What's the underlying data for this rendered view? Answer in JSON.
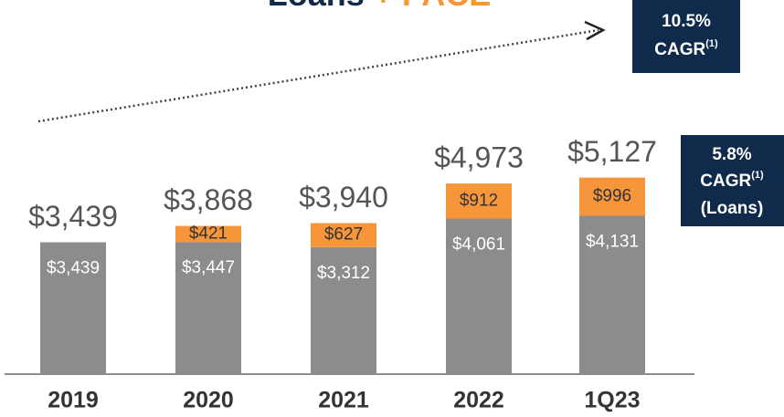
{
  "chart_data": {
    "type": "stacked_bar",
    "title": "Loans",
    "title_suffix": "+ PACE",
    "categories": [
      "2019",
      "2020",
      "2021",
      "2022",
      "1Q23"
    ],
    "series": [
      {
        "name": "Loans",
        "color": "#8c8c8c",
        "values": [
          3439,
          3447,
          3312,
          4061,
          4131
        ],
        "value_labels": [
          "$3,439",
          "$3,447",
          "$3,312",
          "$4,061",
          "$4,131"
        ]
      },
      {
        "name": "PACE",
        "color": "#f7953b",
        "values": [
          null,
          421,
          627,
          912,
          996
        ],
        "value_labels": [
          null,
          "$421",
          "$627",
          "$912",
          "$996"
        ]
      }
    ],
    "totals": [
      3439,
      3868,
      3940,
      4973,
      5127
    ],
    "total_labels": [
      "$3,439",
      "$3,868",
      "$3,940",
      "$4,973",
      "$5,127"
    ],
    "ylim": [
      0,
      6000
    ],
    "annotations": [
      {
        "value": "10.5%",
        "label": "CAGR",
        "note": "(1)"
      },
      {
        "value": "5.8%",
        "label": "CAGR",
        "note": "(1)",
        "scope": "(Loans)"
      }
    ]
  }
}
